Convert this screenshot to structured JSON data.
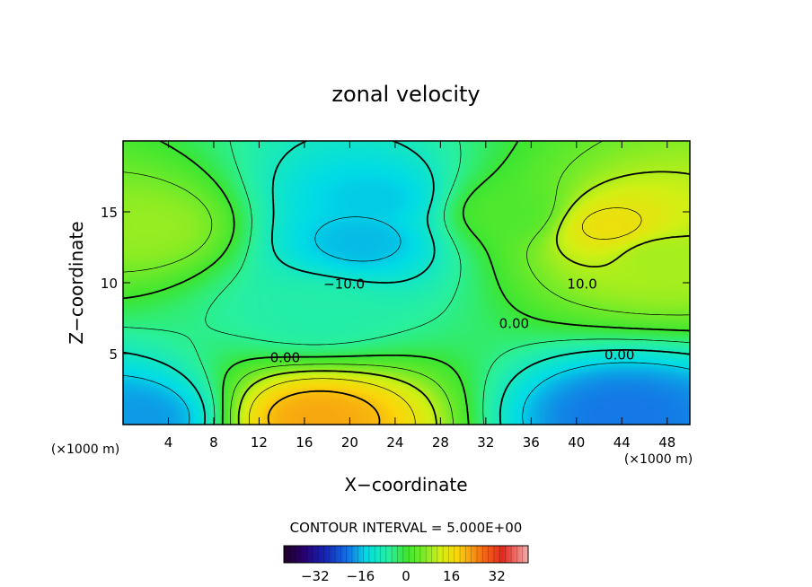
{
  "chart_data": {
    "type": "heatmap",
    "title": "zonal velocity",
    "xlabel": "X−coordinate",
    "ylabel": "Z−coordinate",
    "x_unit_left": "(×1000 m)",
    "x_unit_right": "(×1000 m)",
    "xlim": [
      0,
      50
    ],
    "ylim": [
      0,
      20
    ],
    "x_ticks": [
      4,
      8,
      12,
      16,
      20,
      24,
      28,
      32,
      36,
      40,
      44,
      48
    ],
    "y_ticks": [
      5,
      10,
      15
    ],
    "contour_interval_text": "CONTOUR INTERVAL = 5.000E+00",
    "contour_labels": [
      {
        "text": "−10.0",
        "x": 19.5,
        "y": 9.6,
        "value": -10
      },
      {
        "text": "10.0",
        "x": 40.5,
        "y": 9.6,
        "value": 10
      },
      {
        "text": "0.00",
        "x": 14.3,
        "y": 4.4,
        "value": 0
      },
      {
        "text": "0.00",
        "x": 34.5,
        "y": 6.8,
        "value": 0
      },
      {
        "text": "0.00",
        "x": 43.8,
        "y": 4.6,
        "value": 0
      }
    ],
    "colorbar": {
      "range": [
        -43,
        43
      ],
      "ticks": [
        "−32",
        "−16",
        "0",
        "16",
        "32"
      ],
      "tick_values": [
        -32,
        -16,
        0,
        16,
        32
      ]
    },
    "field_features": [
      {
        "x": 21,
        "y": 13,
        "value": -16
      },
      {
        "x": 22,
        "y": 16,
        "value": -15
      },
      {
        "x": 17,
        "y": 8,
        "value": -7
      },
      {
        "x": 43,
        "y": 14,
        "value": 16
      },
      {
        "x": 47,
        "y": 12,
        "value": 9
      },
      {
        "x": 2,
        "y": 14,
        "value": 8
      },
      {
        "x": 17,
        "y": 0.5,
        "value": 22
      },
      {
        "x": 44,
        "y": 0.8,
        "value": -20
      },
      {
        "x": 1,
        "y": 0.5,
        "value": -18
      },
      {
        "x": 34,
        "y": 15,
        "value": 2
      }
    ]
  }
}
